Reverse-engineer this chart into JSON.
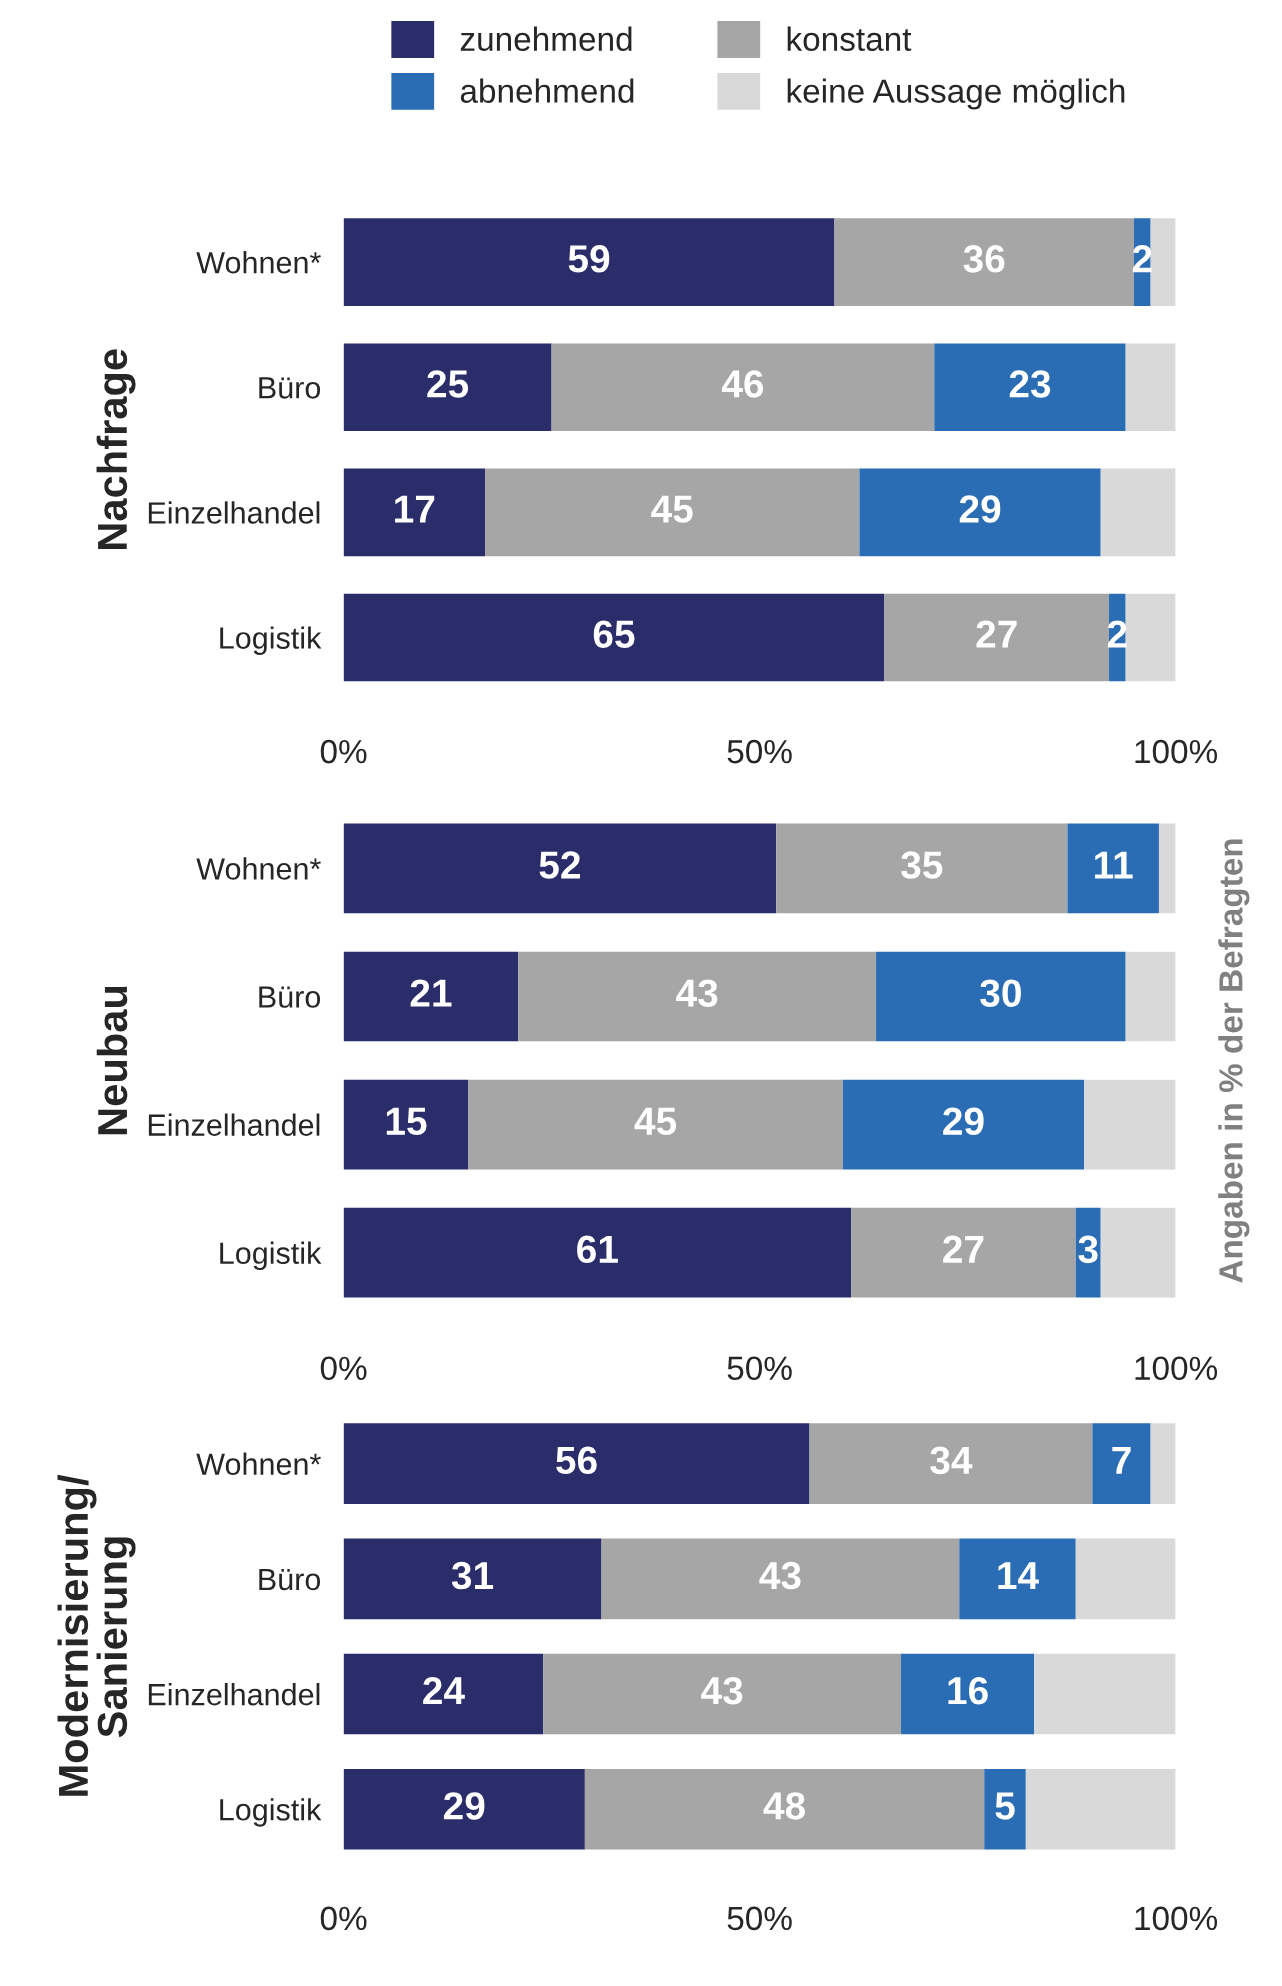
{
  "chart_data": [
    {
      "type": "bar",
      "orientation": "horizontal",
      "stacked": true,
      "ylabel": "Nachfrage",
      "categories": [
        "Wohnen*",
        "Büro",
        "Einzelhandel",
        "Logistik"
      ],
      "xlim": [
        0,
        100
      ],
      "xticks": [
        {
          "value": 0,
          "label": "0%"
        },
        {
          "value": 50,
          "label": "50%"
        },
        {
          "value": 100,
          "label": "100%"
        }
      ],
      "legend": "top",
      "grid": false,
      "series": [
        {
          "name": "zunehmend",
          "color": "#2b2d6b",
          "values": [
            59,
            25,
            17,
            65
          ],
          "value_labels": [
            "59",
            "25",
            "17",
            "65"
          ]
        },
        {
          "name": "konstant",
          "color": "#a6a6a6",
          "values": [
            36,
            46,
            45,
            27
          ],
          "value_labels": [
            "36",
            "46",
            "45",
            "27"
          ]
        },
        {
          "name": "abnehmend",
          "color": "#2a6db5",
          "values": [
            2,
            23,
            29,
            2
          ],
          "value_labels": [
            "2",
            "23",
            "29",
            "2"
          ]
        },
        {
          "name": "keine Aussage möglich",
          "color": "#d9d9d9",
          "values": [
            3,
            6,
            9,
            6
          ]
        }
      ]
    },
    {
      "type": "bar",
      "orientation": "horizontal",
      "stacked": true,
      "ylabel": "Neubau",
      "categories": [
        "Wohnen*",
        "Büro",
        "Einzelhandel",
        "Logistik"
      ],
      "xlim": [
        0,
        100
      ],
      "xticks": [
        {
          "value": 0,
          "label": "0%"
        },
        {
          "value": 50,
          "label": "50%"
        },
        {
          "value": 100,
          "label": "100%"
        }
      ],
      "grid": false,
      "annotations": [
        "Angaben in % der Befragten"
      ],
      "series": [
        {
          "color": "#2b2d6b",
          "values": [
            52,
            21,
            15,
            61
          ],
          "value_labels": [
            "52",
            "21",
            "15",
            "61"
          ]
        },
        {
          "color": "#a6a6a6",
          "values": [
            35,
            43,
            45,
            27
          ],
          "value_labels": [
            "35",
            "43",
            "45",
            "27"
          ]
        },
        {
          "color": "#2a6db5",
          "values": [
            11,
            30,
            29,
            3
          ],
          "value_labels": [
            "11",
            "30",
            "29",
            "3"
          ]
        },
        {
          "color": "#d9d9d9",
          "values": [
            2,
            6,
            11,
            9
          ]
        }
      ]
    },
    {
      "type": "bar",
      "orientation": "horizontal",
      "stacked": true,
      "ylabel": "Modernisierung/\nSanierung",
      "categories": [
        "Wohnen*",
        "Büro",
        "Einzelhandel",
        "Logistik"
      ],
      "xlim": [
        0,
        100
      ],
      "xticks": [
        {
          "value": 0,
          "label": "0%"
        },
        {
          "value": 50,
          "label": "50%"
        },
        {
          "value": 100,
          "label": "100%"
        }
      ],
      "grid": false,
      "series": [
        {
          "color": "#2b2d6b",
          "values": [
            56,
            31,
            24,
            29
          ],
          "value_labels": [
            "56",
            "31",
            "24",
            "29"
          ]
        },
        {
          "color": "#a6a6a6",
          "values": [
            34,
            43,
            43,
            48
          ],
          "value_labels": [
            "34",
            "43",
            "43",
            "48"
          ]
        },
        {
          "color": "#2a6db5",
          "values": [
            7,
            14,
            16,
            5
          ],
          "value_labels": [
            "7",
            "14",
            "16",
            "5"
          ]
        },
        {
          "color": "#d9d9d9",
          "values": [
            3,
            12,
            17,
            18
          ]
        }
      ]
    }
  ]
}
